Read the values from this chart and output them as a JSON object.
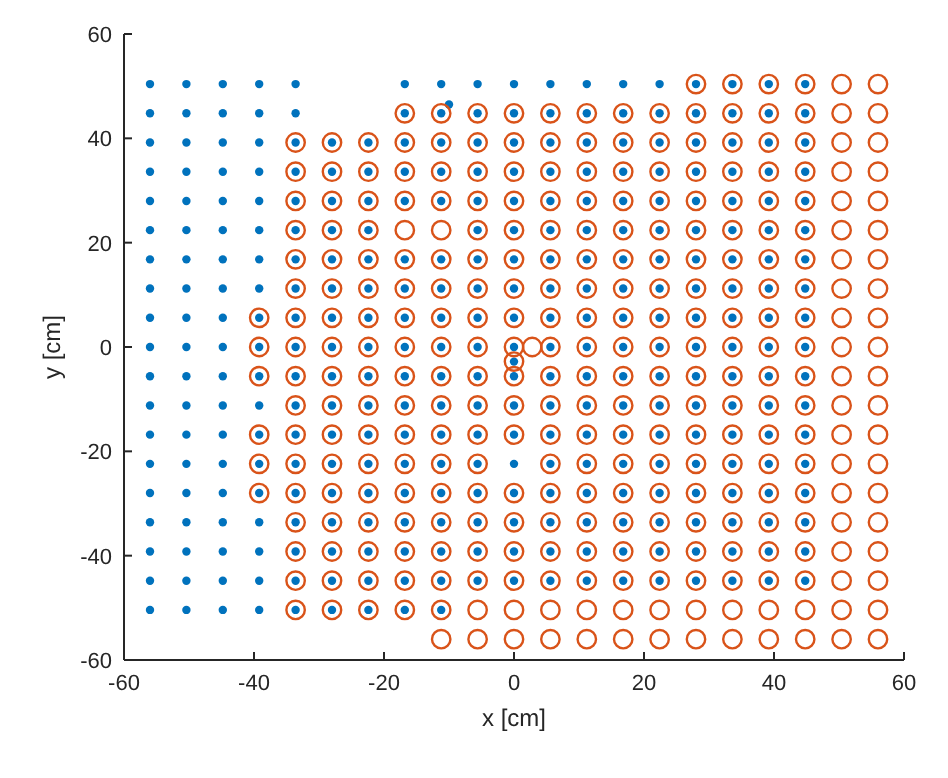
{
  "chart_data": {
    "type": "scatter",
    "xlabel": "x [cm]",
    "ylabel": "y [cm]",
    "xlim": [
      -60,
      60
    ],
    "ylim": [
      -60,
      60
    ],
    "xticks": [
      -60,
      -40,
      -20,
      0,
      20,
      40,
      60
    ],
    "yticks": [
      -60,
      -40,
      -20,
      0,
      20,
      40,
      60
    ],
    "marker": "circle",
    "series": [
      {
        "color": "#0072bd",
        "x": [
          -56,
          -50.4,
          -44.8,
          -39.2,
          -33.6,
          -16.8,
          -11.2,
          -5.6,
          0,
          5.6,
          11.2,
          16.8,
          22.4,
          28,
          33.6,
          39.2,
          44.8,
          -56,
          -50.4,
          -44.8,
          -39.2,
          -33.6,
          -16.8,
          -11.2,
          -5.6,
          0,
          5.6,
          11.2,
          16.8,
          22.4,
          28,
          33.6,
          39.2,
          44.8,
          -56,
          -50.4,
          -44.8,
          -39.2,
          -33.6,
          -28,
          -22.4,
          -16.8,
          -11.2,
          -5.6,
          0,
          5.6,
          11.2,
          16.8,
          22.4,
          28,
          33.6,
          39.2,
          44.8,
          -56,
          -50.4,
          -44.8,
          -39.2,
          -33.6,
          -28,
          -22.4,
          -16.8,
          -11.2,
          -5.6,
          0,
          5.6,
          11.2,
          16.8,
          22.4,
          28,
          33.6,
          39.2,
          44.8,
          -56,
          -50.4,
          -44.8,
          -39.2,
          -33.6,
          -28,
          -22.4,
          -16.8,
          -11.2,
          -5.6,
          0,
          5.6,
          11.2,
          16.8,
          22.4,
          28,
          33.6,
          39.2,
          44.8,
          -56,
          -50.4,
          -44.8,
          -39.2,
          -33.6,
          -28,
          -22.4,
          -5.6,
          0,
          5.6,
          11.2,
          16.8,
          22.4,
          28,
          33.6,
          39.2,
          44.8,
          -56,
          -50.4,
          -44.8,
          -39.2,
          -33.6,
          -28,
          -22.4,
          -16.8,
          -11.2,
          -5.6,
          0,
          5.6,
          11.2,
          16.8,
          22.4,
          28,
          33.6,
          39.2,
          44.8,
          -56,
          -50.4,
          -44.8,
          -39.2,
          -33.6,
          -28,
          -22.4,
          -16.8,
          -11.2,
          -5.6,
          0,
          5.6,
          11.2,
          16.8,
          22.4,
          28,
          33.6,
          39.2,
          44.8,
          -56,
          -50.4,
          -44.8,
          -39.2,
          -33.6,
          -28,
          -22.4,
          -16.8,
          -11.2,
          -5.6,
          0,
          5.6,
          11.2,
          16.8,
          22.4,
          28,
          33.6,
          39.2,
          44.8,
          -56,
          -50.4,
          -44.8,
          -39.2,
          -33.6,
          -28,
          -22.4,
          -16.8,
          -11.2,
          -5.6,
          0,
          5.6,
          11.2,
          16.8,
          22.4,
          28,
          33.6,
          39.2,
          44.8,
          -56,
          -50.4,
          -44.8,
          -39.2,
          -33.6,
          -28,
          -22.4,
          -16.8,
          -11.2,
          -5.6,
          0,
          5.6,
          11.2,
          16.8,
          22.4,
          28,
          33.6,
          39.2,
          44.8,
          -56,
          -50.4,
          -44.8,
          -39.2,
          -33.6,
          -28,
          -22.4,
          -16.8,
          -11.2,
          -5.6,
          0,
          5.6,
          11.2,
          16.8,
          22.4,
          28,
          33.6,
          39.2,
          44.8,
          -56,
          -50.4,
          -44.8,
          -39.2,
          -33.6,
          -28,
          -22.4,
          -16.8,
          -11.2,
          -5.6,
          0,
          5.6,
          11.2,
          16.8,
          22.4,
          28,
          33.6,
          39.2,
          44.8,
          -56,
          -50.4,
          -44.8,
          -39.2,
          -33.6,
          -28,
          -22.4,
          -16.8,
          -11.2,
          -5.6,
          0,
          5.6,
          11.2,
          16.8,
          22.4,
          28,
          33.6,
          39.2,
          44.8,
          -56,
          -50.4,
          -44.8,
          -39.2,
          -33.6,
          -28,
          -22.4,
          -16.8,
          -11.2,
          -5.6,
          0,
          5.6,
          11.2,
          16.8,
          22.4,
          28,
          33.6,
          39.2,
          44.8,
          -56,
          -50.4,
          -44.8,
          -39.2,
          -33.6,
          -28,
          -22.4,
          -16.8,
          -11.2,
          -5.6,
          0,
          5.6,
          11.2,
          16.8,
          22.4,
          28,
          33.6,
          39.2,
          44.8,
          -56,
          -50.4,
          -44.8,
          -39.2,
          -33.6,
          -28,
          -22.4,
          -16.8,
          -11.2,
          -5.6,
          0,
          5.6,
          11.2,
          16.8,
          22.4,
          28,
          33.6,
          39.2,
          44.8,
          -56,
          -50.4,
          -44.8,
          -39.2,
          -33.6,
          -28,
          -22.4,
          -16.8,
          -11.2,
          -5.6,
          0,
          5.6,
          11.2,
          16.8,
          22.4,
          28,
          33.6,
          39.2,
          44.8,
          -56,
          -50.4,
          -44.8,
          -39.2,
          -33.6,
          -28,
          -22.4,
          -16.8,
          -11.2,
          -10,
          0
        ],
        "values": [
          50.4,
          50.4,
          50.4,
          50.4,
          50.4,
          50.4,
          50.4,
          50.4,
          50.4,
          50.4,
          50.4,
          50.4,
          50.4,
          50.4,
          50.4,
          50.4,
          50.4,
          44.8,
          44.8,
          44.8,
          44.8,
          44.8,
          44.8,
          44.8,
          44.8,
          44.8,
          44.8,
          44.8,
          44.8,
          44.8,
          44.8,
          44.8,
          44.8,
          44.8,
          39.2,
          39.2,
          39.2,
          39.2,
          39.2,
          39.2,
          39.2,
          39.2,
          39.2,
          39.2,
          39.2,
          39.2,
          39.2,
          39.2,
          39.2,
          39.2,
          39.2,
          39.2,
          39.2,
          33.6,
          33.6,
          33.6,
          33.6,
          33.6,
          33.6,
          33.6,
          33.6,
          33.6,
          33.6,
          33.6,
          33.6,
          33.6,
          33.6,
          33.6,
          33.6,
          33.6,
          33.6,
          33.6,
          28,
          28,
          28,
          28,
          28,
          28,
          28,
          28,
          28,
          28,
          28,
          28,
          28,
          28,
          28,
          28,
          28,
          28,
          28,
          22.4,
          22.4,
          22.4,
          22.4,
          22.4,
          22.4,
          22.4,
          22.4,
          22.4,
          22.4,
          22.4,
          22.4,
          22.4,
          22.4,
          22.4,
          22.4,
          22.4,
          16.8,
          16.8,
          16.8,
          16.8,
          16.8,
          16.8,
          16.8,
          16.8,
          16.8,
          16.8,
          16.8,
          16.8,
          16.8,
          16.8,
          16.8,
          16.8,
          16.8,
          16.8,
          16.8,
          11.2,
          11.2,
          11.2,
          11.2,
          11.2,
          11.2,
          11.2,
          11.2,
          11.2,
          11.2,
          11.2,
          11.2,
          11.2,
          11.2,
          11.2,
          11.2,
          11.2,
          11.2,
          11.2,
          5.6,
          5.6,
          5.6,
          5.6,
          5.6,
          5.6,
          5.6,
          5.6,
          5.6,
          5.6,
          5.6,
          5.6,
          5.6,
          5.6,
          5.6,
          5.6,
          5.6,
          5.6,
          5.6,
          0,
          0,
          0,
          0,
          0,
          0,
          0,
          0,
          0,
          0,
          0,
          0,
          0,
          0,
          0,
          0,
          0,
          0,
          0,
          -5.6,
          -5.6,
          -5.6,
          -5.6,
          -5.6,
          -5.6,
          -5.6,
          -5.6,
          -5.6,
          -5.6,
          -5.6,
          -5.6,
          -5.6,
          -5.6,
          -5.6,
          -5.6,
          -5.6,
          -5.6,
          -5.6,
          -11.2,
          -11.2,
          -11.2,
          -11.2,
          -11.2,
          -11.2,
          -11.2,
          -11.2,
          -11.2,
          -11.2,
          -11.2,
          -11.2,
          -11.2,
          -11.2,
          -11.2,
          -11.2,
          -11.2,
          -11.2,
          -11.2,
          -16.8,
          -16.8,
          -16.8,
          -16.8,
          -16.8,
          -16.8,
          -16.8,
          -16.8,
          -16.8,
          -16.8,
          -16.8,
          -16.8,
          -16.8,
          -16.8,
          -16.8,
          -16.8,
          -16.8,
          -16.8,
          -16.8,
          -22.4,
          -22.4,
          -22.4,
          -22.4,
          -22.4,
          -22.4,
          -22.4,
          -22.4,
          -22.4,
          -22.4,
          -22.4,
          -22.4,
          -22.4,
          -22.4,
          -22.4,
          -22.4,
          -22.4,
          -22.4,
          -22.4,
          -28,
          -28,
          -28,
          -28,
          -28,
          -28,
          -28,
          -28,
          -28,
          -28,
          -28,
          -28,
          -28,
          -28,
          -28,
          -28,
          -28,
          -28,
          -28,
          -33.6,
          -33.6,
          -33.6,
          -33.6,
          -33.6,
          -33.6,
          -33.6,
          -33.6,
          -33.6,
          -33.6,
          -33.6,
          -33.6,
          -33.6,
          -33.6,
          -33.6,
          -33.6,
          -33.6,
          -33.6,
          -33.6,
          -39.2,
          -39.2,
          -39.2,
          -39.2,
          -39.2,
          -39.2,
          -39.2,
          -39.2,
          -39.2,
          -39.2,
          -39.2,
          -39.2,
          -39.2,
          -39.2,
          -39.2,
          -39.2,
          -39.2,
          -39.2,
          -39.2,
          -44.8,
          -44.8,
          -44.8,
          -44.8,
          -44.8,
          -44.8,
          -44.8,
          -44.8,
          -44.8,
          -44.8,
          -44.8,
          -44.8,
          -44.8,
          -44.8,
          -44.8,
          -44.8,
          -44.8,
          -44.8,
          -44.8,
          -50.4,
          -50.4,
          -50.4,
          -50.4,
          -50.4,
          -50.4,
          -50.4,
          -50.4,
          -50.4,
          46.5,
          -2.8
        ]
      },
      {
        "color": "#d95319",
        "x": [
          28,
          33.6,
          39.2,
          44.8,
          50.4,
          56,
          -16.8,
          -11.2,
          -5.6,
          0,
          5.6,
          11.2,
          16.8,
          22.4,
          28,
          33.6,
          39.2,
          44.8,
          50.4,
          56,
          -33.6,
          -28,
          -22.4,
          -16.8,
          -11.2,
          -5.6,
          0,
          5.6,
          11.2,
          16.8,
          22.4,
          28,
          33.6,
          39.2,
          44.8,
          50.4,
          56,
          -33.6,
          -28,
          -22.4,
          -16.8,
          -11.2,
          -5.6,
          0,
          5.6,
          11.2,
          16.8,
          22.4,
          28,
          33.6,
          39.2,
          44.8,
          50.4,
          56,
          -33.6,
          -28,
          -22.4,
          -16.8,
          -11.2,
          -5.6,
          0,
          5.6,
          11.2,
          16.8,
          22.4,
          28,
          33.6,
          39.2,
          44.8,
          50.4,
          56,
          -33.6,
          -28,
          -22.4,
          -16.8,
          -11.2,
          -5.6,
          0,
          5.6,
          11.2,
          16.8,
          22.4,
          28,
          33.6,
          39.2,
          44.8,
          50.4,
          56,
          -33.6,
          -28,
          -22.4,
          -16.8,
          -11.2,
          -5.6,
          0,
          5.6,
          11.2,
          16.8,
          22.4,
          28,
          33.6,
          39.2,
          44.8,
          50.4,
          56,
          -33.6,
          -28,
          -22.4,
          -16.8,
          -11.2,
          -5.6,
          0,
          5.6,
          11.2,
          16.8,
          22.4,
          28,
          33.6,
          39.2,
          44.8,
          50.4,
          56,
          -39.2,
          -33.6,
          -28,
          -22.4,
          -16.8,
          -11.2,
          -5.6,
          0,
          5.6,
          11.2,
          16.8,
          22.4,
          28,
          33.6,
          39.2,
          44.8,
          50.4,
          56,
          -39.2,
          -33.6,
          -28,
          -22.4,
          -16.8,
          -11.2,
          -5.6,
          0,
          5.6,
          11.2,
          16.8,
          22.4,
          28,
          33.6,
          39.2,
          44.8,
          50.4,
          56,
          -39.2,
          -33.6,
          -28,
          -22.4,
          -16.8,
          -11.2,
          -5.6,
          0,
          5.6,
          11.2,
          16.8,
          22.4,
          28,
          33.6,
          39.2,
          44.8,
          50.4,
          56,
          -33.6,
          -28,
          -22.4,
          -16.8,
          -11.2,
          -5.6,
          0,
          5.6,
          11.2,
          16.8,
          22.4,
          28,
          33.6,
          39.2,
          44.8,
          50.4,
          56,
          -39.2,
          -33.6,
          -28,
          -22.4,
          -16.8,
          -11.2,
          -5.6,
          0,
          5.6,
          11.2,
          16.8,
          22.4,
          28,
          33.6,
          39.2,
          44.8,
          50.4,
          56,
          -39.2,
          -33.6,
          -28,
          -22.4,
          -16.8,
          -11.2,
          -5.6,
          5.6,
          11.2,
          16.8,
          22.4,
          28,
          33.6,
          39.2,
          44.8,
          50.4,
          56,
          -39.2,
          -33.6,
          -28,
          -22.4,
          -16.8,
          -11.2,
          -5.6,
          0,
          5.6,
          11.2,
          16.8,
          22.4,
          28,
          33.6,
          39.2,
          44.8,
          50.4,
          56,
          -33.6,
          -28,
          -22.4,
          -16.8,
          -11.2,
          -5.6,
          0,
          5.6,
          11.2,
          16.8,
          22.4,
          28,
          33.6,
          39.2,
          44.8,
          50.4,
          56,
          -33.6,
          -28,
          -22.4,
          -16.8,
          -11.2,
          -5.6,
          0,
          5.6,
          11.2,
          16.8,
          22.4,
          28,
          33.6,
          39.2,
          44.8,
          50.4,
          56,
          -33.6,
          -28,
          -22.4,
          -16.8,
          -11.2,
          -5.6,
          0,
          5.6,
          11.2,
          16.8,
          22.4,
          28,
          33.6,
          39.2,
          44.8,
          50.4,
          56,
          -33.6,
          -28,
          -22.4,
          -16.8,
          -11.2,
          -5.6,
          0,
          5.6,
          11.2,
          16.8,
          22.4,
          28,
          33.6,
          39.2,
          44.8,
          50.4,
          56,
          -11.2,
          -5.6,
          0,
          5.6,
          11.2,
          16.8,
          22.4,
          28,
          33.6,
          39.2,
          44.8,
          50.4,
          56,
          2.8,
          0
        ],
        "values": [
          50.4,
          50.4,
          50.4,
          50.4,
          50.4,
          50.4,
          44.8,
          44.8,
          44.8,
          44.8,
          44.8,
          44.8,
          44.8,
          44.8,
          44.8,
          44.8,
          44.8,
          44.8,
          44.8,
          44.8,
          39.2,
          39.2,
          39.2,
          39.2,
          39.2,
          39.2,
          39.2,
          39.2,
          39.2,
          39.2,
          39.2,
          39.2,
          39.2,
          39.2,
          39.2,
          39.2,
          39.2,
          33.6,
          33.6,
          33.6,
          33.6,
          33.6,
          33.6,
          33.6,
          33.6,
          33.6,
          33.6,
          33.6,
          33.6,
          33.6,
          33.6,
          33.6,
          33.6,
          33.6,
          28,
          28,
          28,
          28,
          28,
          28,
          28,
          28,
          28,
          28,
          28,
          28,
          28,
          28,
          28,
          28,
          28,
          22.4,
          22.4,
          22.4,
          22.4,
          22.4,
          22.4,
          22.4,
          22.4,
          22.4,
          22.4,
          22.4,
          22.4,
          22.4,
          22.4,
          22.4,
          22.4,
          22.4,
          16.8,
          16.8,
          16.8,
          16.8,
          16.8,
          16.8,
          16.8,
          16.8,
          16.8,
          16.8,
          16.8,
          16.8,
          16.8,
          16.8,
          16.8,
          16.8,
          16.8,
          11.2,
          11.2,
          11.2,
          11.2,
          11.2,
          11.2,
          11.2,
          11.2,
          11.2,
          11.2,
          11.2,
          11.2,
          11.2,
          11.2,
          11.2,
          11.2,
          11.2,
          5.6,
          5.6,
          5.6,
          5.6,
          5.6,
          5.6,
          5.6,
          5.6,
          5.6,
          5.6,
          5.6,
          5.6,
          5.6,
          5.6,
          5.6,
          5.6,
          5.6,
          5.6,
          0,
          0,
          0,
          0,
          0,
          0,
          0,
          0,
          0,
          0,
          0,
          0,
          0,
          0,
          0,
          0,
          0,
          0,
          -5.6,
          -5.6,
          -5.6,
          -5.6,
          -5.6,
          -5.6,
          -5.6,
          -5.6,
          -5.6,
          -5.6,
          -5.6,
          -5.6,
          -5.6,
          -5.6,
          -5.6,
          -5.6,
          -5.6,
          -5.6,
          -11.2,
          -11.2,
          -11.2,
          -11.2,
          -11.2,
          -11.2,
          -11.2,
          -11.2,
          -11.2,
          -11.2,
          -11.2,
          -11.2,
          -11.2,
          -11.2,
          -11.2,
          -11.2,
          -11.2,
          -16.8,
          -16.8,
          -16.8,
          -16.8,
          -16.8,
          -16.8,
          -16.8,
          -16.8,
          -16.8,
          -16.8,
          -16.8,
          -16.8,
          -16.8,
          -16.8,
          -16.8,
          -16.8,
          -16.8,
          -16.8,
          -22.4,
          -22.4,
          -22.4,
          -22.4,
          -22.4,
          -22.4,
          -22.4,
          -22.4,
          -22.4,
          -22.4,
          -22.4,
          -22.4,
          -22.4,
          -22.4,
          -22.4,
          -22.4,
          -22.4,
          -28,
          -28,
          -28,
          -28,
          -28,
          -28,
          -28,
          -28,
          -28,
          -28,
          -28,
          -28,
          -28,
          -28,
          -28,
          -28,
          -28,
          -28,
          -33.6,
          -33.6,
          -33.6,
          -33.6,
          -33.6,
          -33.6,
          -33.6,
          -33.6,
          -33.6,
          -33.6,
          -33.6,
          -33.6,
          -33.6,
          -33.6,
          -33.6,
          -33.6,
          -33.6,
          -39.2,
          -39.2,
          -39.2,
          -39.2,
          -39.2,
          -39.2,
          -39.2,
          -39.2,
          -39.2,
          -39.2,
          -39.2,
          -39.2,
          -39.2,
          -39.2,
          -39.2,
          -39.2,
          -39.2,
          -44.8,
          -44.8,
          -44.8,
          -44.8,
          -44.8,
          -44.8,
          -44.8,
          -44.8,
          -44.8,
          -44.8,
          -44.8,
          -44.8,
          -44.8,
          -44.8,
          -44.8,
          -44.8,
          -44.8,
          -50.4,
          -50.4,
          -50.4,
          -50.4,
          -50.4,
          -50.4,
          -50.4,
          -50.4,
          -50.4,
          -50.4,
          -50.4,
          -50.4,
          -50.4,
          -50.4,
          -50.4,
          -50.4,
          -50.4,
          -56,
          -56,
          -56,
          -56,
          -56,
          -56,
          -56,
          -56,
          -56,
          -56,
          -56,
          -56,
          -56,
          0,
          -2.8
        ]
      }
    ]
  }
}
